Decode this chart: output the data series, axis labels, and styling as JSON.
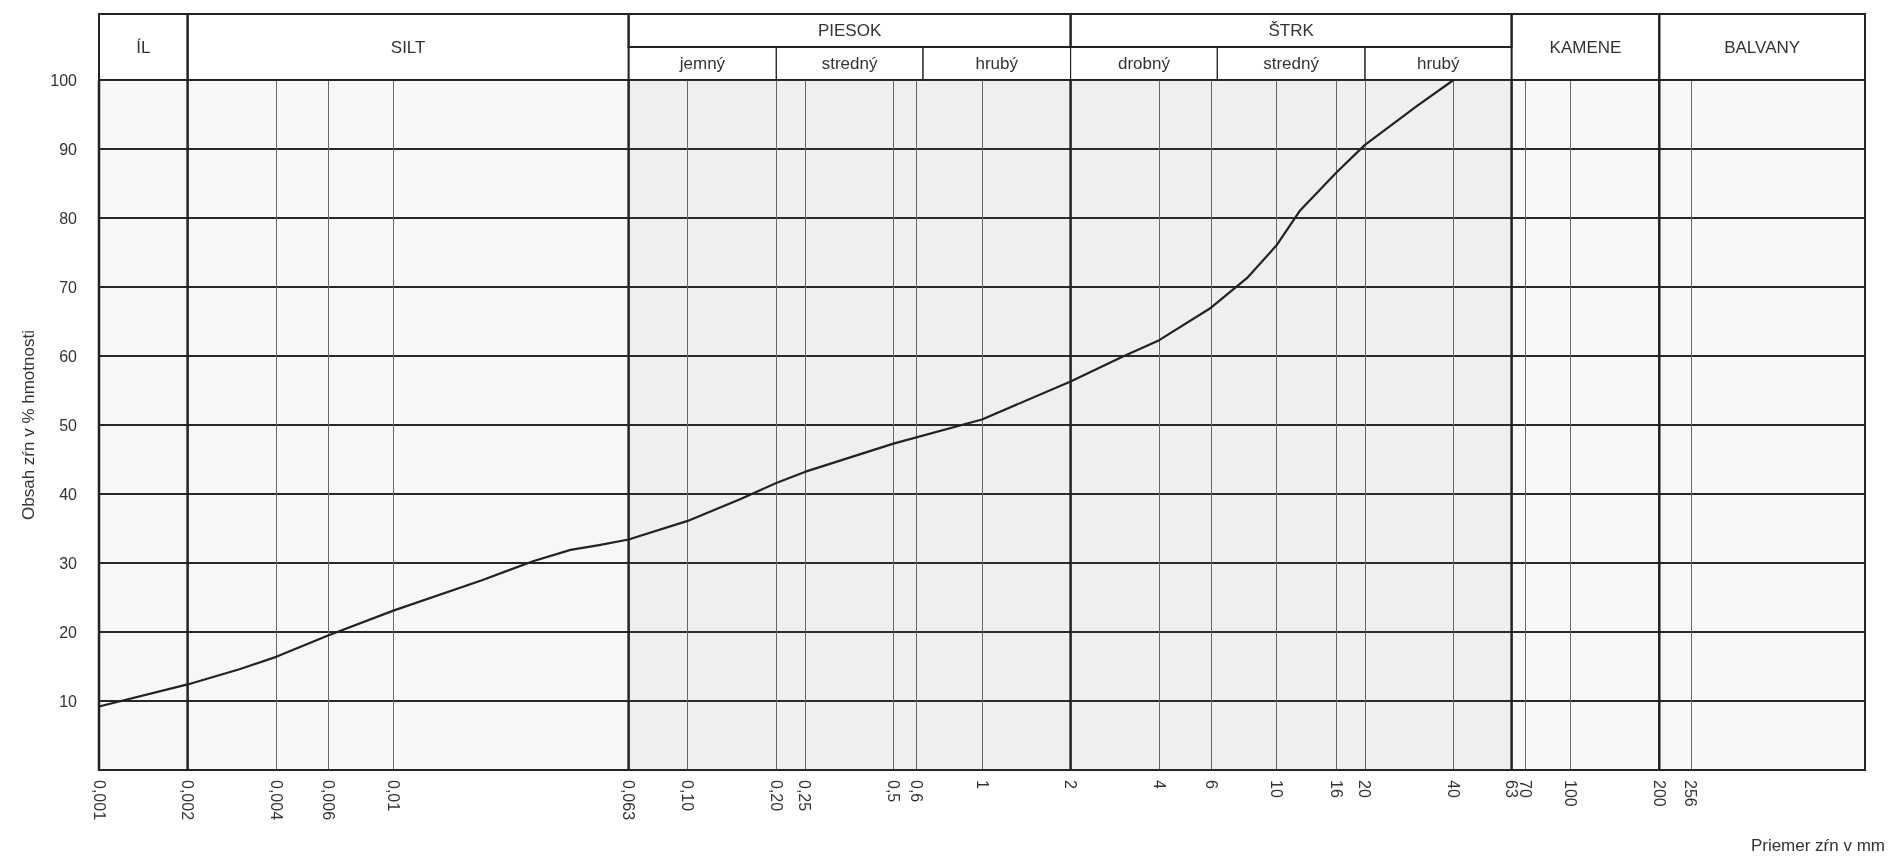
{
  "chart_data": {
    "type": "line",
    "xlabel": "Priemer zŕn v mm",
    "ylabel": "Obsah zŕn v % hmotnosti",
    "log": "x",
    "xlim": [
      0.001,
      1000
    ],
    "ylim": [
      0,
      100
    ],
    "xticks": [
      {
        "value": 0.001,
        "label": "0,001"
      },
      {
        "value": 0.002,
        "label": "0,002"
      },
      {
        "value": 0.004,
        "label": "0,004"
      },
      {
        "value": 0.006,
        "label": "0,006"
      },
      {
        "value": 0.01,
        "label": "0,01"
      },
      {
        "value": 0.063,
        "label": "0,063"
      },
      {
        "value": 0.1,
        "label": "0,10"
      },
      {
        "value": 0.2,
        "label": "0,20"
      },
      {
        "value": 0.25,
        "label": "0,25"
      },
      {
        "value": 0.5,
        "label": "0,5"
      },
      {
        "value": 0.6,
        "label": "0,6"
      },
      1,
      2,
      4,
      6,
      10,
      16,
      20,
      40,
      63,
      70,
      100,
      200,
      256
    ],
    "yticks": [
      10,
      20,
      30,
      40,
      50,
      60,
      70,
      80,
      90,
      100
    ],
    "grid": true,
    "marker": "none",
    "line_style": "solid",
    "series": [
      {
        "color": "#222222",
        "x": [
          0.001,
          0.002,
          0.003,
          0.004,
          0.006,
          0.01,
          0.02,
          0.03,
          0.04,
          0.05,
          0.063,
          0.1,
          0.15,
          0.2,
          0.25,
          0.5,
          1,
          2,
          3,
          4,
          6,
          8,
          10,
          12,
          16,
          20,
          30,
          40
        ],
        "values": [
          9.2,
          12.4,
          14.6,
          16.4,
          19.5,
          23.1,
          27.5,
          30.3,
          31.9,
          32.6,
          33.4,
          36.1,
          39.2,
          41.6,
          43.2,
          47.3,
          50.8,
          56.3,
          59.9,
          62.3,
          67,
          71.4,
          76,
          81,
          86.6,
          90.6,
          96.2,
          100
        ]
      }
    ],
    "bands": [
      {
        "axis": "x",
        "from": 0.001,
        "to": 0.002,
        "label": "ÍL"
      },
      {
        "axis": "x",
        "from": 0.002,
        "to": 0.063,
        "label": "SILT"
      },
      {
        "axis": "x",
        "from": 0.063,
        "to": 2,
        "label": "PIESOK"
      },
      {
        "axis": "x",
        "from": 2,
        "to": 63,
        "label": "ŠTRK"
      },
      {
        "axis": "x",
        "from": 63,
        "to": 200,
        "label": "KAMENE"
      },
      {
        "axis": "x",
        "from": 200,
        "to": 1000,
        "label": "BALVANY"
      },
      {
        "axis": "x",
        "from": 0.063,
        "to": 0.2,
        "label": "jemný"
      },
      {
        "axis": "x",
        "from": 0.2,
        "to": 0.63,
        "label": "stredný"
      },
      {
        "axis": "x",
        "from": 0.63,
        "to": 2,
        "label": "hrubý"
      },
      {
        "axis": "x",
        "from": 2,
        "to": 6.3,
        "label": "drobný"
      },
      {
        "axis": "x",
        "from": 6.3,
        "to": 20,
        "label": "stredný"
      },
      {
        "axis": "x",
        "from": 20,
        "to": 63,
        "label": "hrubý"
      }
    ]
  }
}
